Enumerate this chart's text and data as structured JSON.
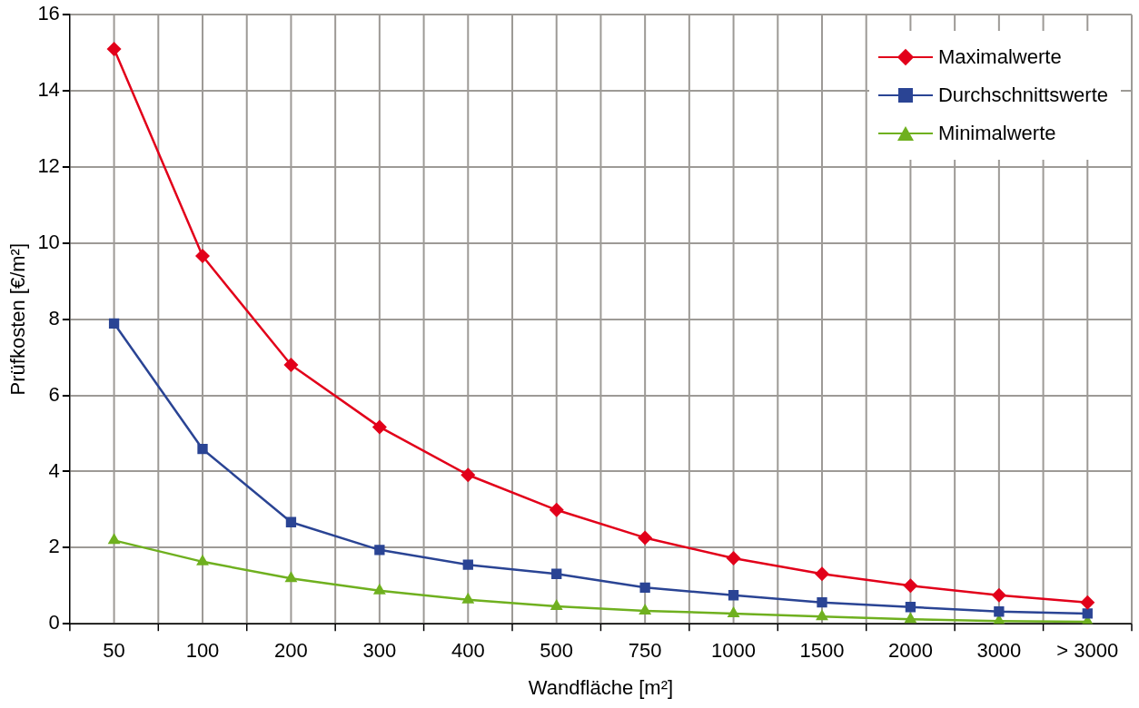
{
  "chart_data": {
    "type": "line",
    "xlabel": "Wandfläche [m²]",
    "ylabel": "Prüfkosten [€/m²]",
    "categories": [
      "50",
      "100",
      "200",
      "300",
      "400",
      "500",
      "750",
      "1000",
      "1500",
      "2000",
      "3000",
      "> 3000"
    ],
    "series": [
      {
        "name": "Maximalwerte",
        "color": "#e2001a",
        "marker": "diamond",
        "values": [
          15.1,
          9.66,
          6.8,
          5.17,
          3.91,
          2.99,
          2.26,
          1.72,
          1.31,
          1.0,
          0.75,
          0.56
        ]
      },
      {
        "name": "Durchschnittswerte",
        "color": "#2a4494",
        "marker": "square",
        "values": [
          7.89,
          4.59,
          2.67,
          1.94,
          1.55,
          1.31,
          0.95,
          0.75,
          0.56,
          0.44,
          0.32,
          0.27
        ]
      },
      {
        "name": "Minimalwerte",
        "color": "#6fb01f",
        "marker": "triangle",
        "values": [
          2.19,
          1.63,
          1.19,
          0.87,
          0.63,
          0.46,
          0.34,
          0.27,
          0.19,
          0.12,
          0.07,
          0.05
        ]
      }
    ],
    "ylim": [
      0,
      16
    ],
    "yticks": [
      0,
      2,
      4,
      6,
      8,
      10,
      12,
      14,
      16
    ],
    "grid": true,
    "legend": "top right"
  }
}
